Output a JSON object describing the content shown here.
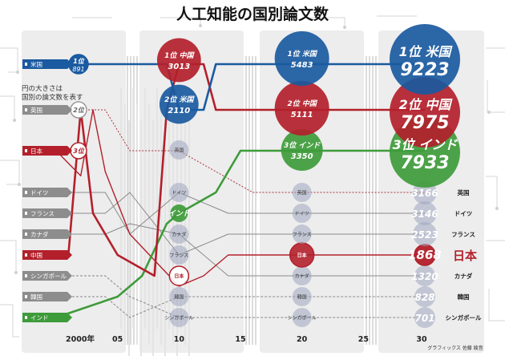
{
  "title": "人工知能の国別論文数",
  "legend_note": "円の大きさは国別の論文数を表す",
  "credit": "グラフィックス 佐藤 綾音",
  "colors": {
    "us": "#1a5aa0",
    "china": "#b3202b",
    "india": "#3e9b3a",
    "other": "#8a8c95",
    "bubble_other": "#9fa5c0",
    "background_panel": "#ededed"
  },
  "chart_data": {
    "type": "line",
    "title": "人工知能の国別論文数",
    "x_ticks": [
      "2000年",
      "05",
      "10",
      "15",
      "20",
      "25",
      "30"
    ],
    "x_range": [
      2000,
      2030
    ],
    "rank_slots": 11,
    "countries": [
      {
        "key": "us",
        "label": "米国",
        "left_label": "米国"
      },
      {
        "key": "uk",
        "label": "英国",
        "left_label": "英国"
      },
      {
        "key": "japan",
        "label": "日本",
        "left_label": "日本"
      },
      {
        "key": "germany",
        "label": "ドイツ",
        "left_label": "ドイツ"
      },
      {
        "key": "france",
        "label": "フランス",
        "left_label": "フランス"
      },
      {
        "key": "canada",
        "label": "カナダ",
        "left_label": "カナダ"
      },
      {
        "key": "china",
        "label": "中国",
        "left_label": "中国"
      },
      {
        "key": "singapore",
        "label": "シンガポール",
        "left_label": "シンガポール"
      },
      {
        "key": "korea",
        "label": "韓国",
        "left_label": "韓国"
      },
      {
        "key": "india",
        "label": "インド",
        "left_label": "インド"
      }
    ],
    "snapshots": [
      {
        "year": 2000,
        "entries": [
          {
            "country": "us",
            "rank": 1,
            "badge": "1位",
            "value": 891
          },
          {
            "country": "uk",
            "rank": 2,
            "badge": "2位"
          },
          {
            "country": "japan",
            "rank": 3,
            "badge": "3位"
          }
        ]
      },
      {
        "year": 2010,
        "entries": [
          {
            "country": "china",
            "rank": 1,
            "badge": "1位",
            "name": "中国",
            "value": 3013
          },
          {
            "country": "us",
            "rank": 2,
            "badge": "2位",
            "name": "米国",
            "value": 2110
          },
          {
            "country": "uk",
            "rank": 3,
            "name": "英国"
          },
          {
            "country": "germany",
            "rank": 4,
            "name": "ドイツ"
          },
          {
            "country": "india",
            "rank": 5,
            "name": "インド"
          },
          {
            "country": "canada",
            "rank": 6,
            "name": "カナダ"
          },
          {
            "country": "france",
            "rank": 7,
            "name": "フランス"
          },
          {
            "country": "japan",
            "rank": 8,
            "name": "日本"
          },
          {
            "country": "korea",
            "rank": 9,
            "name": "韓国"
          },
          {
            "country": "singapore",
            "rank": 10,
            "name": "シンガポール"
          }
        ]
      },
      {
        "year": 2020,
        "entries": [
          {
            "country": "us",
            "rank": 1,
            "badge": "1位",
            "name": "米国",
            "value": 5483
          },
          {
            "country": "china",
            "rank": 2,
            "badge": "2位",
            "name": "中国",
            "value": 5111
          },
          {
            "country": "india",
            "rank": 3,
            "badge": "3位",
            "name": "インド",
            "value": 3350
          },
          {
            "country": "uk",
            "rank": 4,
            "name": "英国"
          },
          {
            "country": "germany",
            "rank": 5,
            "name": "ドイツ"
          },
          {
            "country": "france",
            "rank": 6,
            "name": "フランス"
          },
          {
            "country": "japan",
            "rank": 7,
            "name": "日本"
          },
          {
            "country": "canada",
            "rank": 8,
            "name": "カナダ"
          },
          {
            "country": "korea",
            "rank": 9,
            "name": "韓国"
          },
          {
            "country": "singapore",
            "rank": 10,
            "name": "シンガポール"
          }
        ]
      },
      {
        "year": 2030,
        "entries": [
          {
            "country": "us",
            "rank": 1,
            "badge": "1位",
            "name": "米国",
            "value": 9223
          },
          {
            "country": "china",
            "rank": 2,
            "badge": "2位",
            "name": "中国",
            "value": 7975
          },
          {
            "country": "india",
            "rank": 3,
            "badge": "3位",
            "name": "インド",
            "value": 7933
          },
          {
            "country": "uk",
            "rank": 4,
            "name": "英国",
            "value": 3166
          },
          {
            "country": "germany",
            "rank": 5,
            "name": "ドイツ",
            "value": 3146
          },
          {
            "country": "france",
            "rank": 6,
            "name": "フランス",
            "value": 2523
          },
          {
            "country": "japan",
            "rank": 7,
            "name": "日本",
            "value": 1868
          },
          {
            "country": "canada",
            "rank": 8,
            "name": "カナダ",
            "value": 1320
          },
          {
            "country": "korea",
            "rank": 9,
            "name": "韓国",
            "value": 828
          },
          {
            "country": "singapore",
            "rank": 10,
            "name": "シンガポール",
            "value": 701
          }
        ]
      }
    ],
    "trajectories": {
      "us": [
        [
          2000,
          1
        ],
        [
          2009,
          1
        ],
        [
          2010,
          2
        ],
        [
          2012,
          2
        ],
        [
          2013,
          1
        ],
        [
          2030,
          1
        ]
      ],
      "china": [
        [
          2000,
          7
        ],
        [
          2001,
          7
        ],
        [
          2002,
          2
        ],
        [
          2003,
          5
        ],
        [
          2005,
          7
        ],
        [
          2008,
          8
        ],
        [
          2009,
          2
        ],
        [
          2010,
          1
        ],
        [
          2012,
          1
        ],
        [
          2013,
          2
        ],
        [
          2030,
          2
        ]
      ],
      "india": [
        [
          2000,
          10
        ],
        [
          2005,
          9
        ],
        [
          2007,
          8
        ],
        [
          2009,
          5.5
        ],
        [
          2010,
          5
        ],
        [
          2013,
          4
        ],
        [
          2015,
          3
        ],
        [
          2030,
          3
        ]
      ],
      "japan": [
        [
          2000,
          3
        ],
        [
          2002,
          3.6
        ],
        [
          2003,
          2
        ],
        [
          2004,
          3.5
        ],
        [
          2006,
          6
        ],
        [
          2010,
          8.5
        ],
        [
          2012,
          8
        ],
        [
          2014,
          7
        ],
        [
          2030,
          7
        ]
      ],
      "uk": [
        [
          2000,
          2
        ],
        [
          2004,
          2
        ],
        [
          2006,
          3
        ],
        [
          2010,
          3
        ],
        [
          2013,
          3.5
        ],
        [
          2016,
          4
        ],
        [
          2030,
          4
        ]
      ],
      "germany": [
        [
          2000,
          4
        ],
        [
          2004,
          4
        ],
        [
          2006,
          6
        ],
        [
          2010,
          4
        ],
        [
          2014,
          5
        ],
        [
          2030,
          5
        ]
      ],
      "france": [
        [
          2000,
          5
        ],
        [
          2004,
          5
        ],
        [
          2006,
          4
        ],
        [
          2010,
          7
        ],
        [
          2014,
          6
        ],
        [
          2030,
          6
        ]
      ],
      "canada": [
        [
          2000,
          6
        ],
        [
          2004,
          6
        ],
        [
          2006,
          5.5
        ],
        [
          2010,
          6
        ],
        [
          2014,
          8
        ],
        [
          2030,
          8
        ]
      ],
      "korea": [
        [
          2000,
          9
        ],
        [
          2004,
          9
        ],
        [
          2006,
          10
        ],
        [
          2010,
          9
        ],
        [
          2014,
          9
        ],
        [
          2030,
          9
        ]
      ],
      "singapore": [
        [
          2000,
          8
        ],
        [
          2004,
          8
        ],
        [
          2006,
          9
        ],
        [
          2010,
          10
        ],
        [
          2014,
          10
        ],
        [
          2030,
          10
        ]
      ]
    }
  }
}
